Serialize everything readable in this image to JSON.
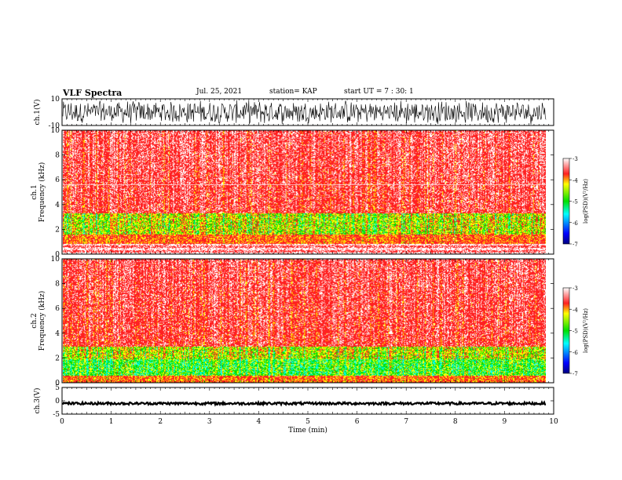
{
  "header": {
    "title": "VLF Spectra",
    "date": "Jul. 25, 2021",
    "station": "station= KAP",
    "start": "start UT = 7 : 30: 1"
  },
  "chart_data": [
    {
      "type": "line",
      "name": "ch1-waveform",
      "ylabel": "ch.1(V)",
      "ylim": [
        -10,
        10
      ],
      "yticks": [
        10,
        -10
      ],
      "xlim": [
        0,
        10
      ],
      "data_span_min": [
        0,
        9.85
      ],
      "description": "dense noisy waveform filling most of the -10..10 V range"
    },
    {
      "type": "heatmap",
      "name": "ch1-spectrogram",
      "ylabel": "ch.1 Frequency (kHz)",
      "ylim": [
        0,
        10
      ],
      "yticks": [
        0,
        2,
        4,
        6,
        8,
        10
      ],
      "xlim": [
        0,
        10
      ],
      "colorbar": {
        "label": "log(PSD)(V²/Hz)",
        "range": [
          -7,
          -3
        ],
        "ticks": [
          -3,
          -4,
          -5,
          -6,
          -7
        ]
      },
      "bands": [
        {
          "f": [
            0,
            0.8
          ],
          "level": "red-white striped"
        },
        {
          "f": [
            0.8,
            1.5
          ],
          "level": "red"
        },
        {
          "f": [
            1.5,
            3.2
          ],
          "level": "yellow-green"
        },
        {
          "f": [
            3.2,
            10
          ],
          "level": "red/white"
        }
      ]
    },
    {
      "type": "heatmap",
      "name": "ch2-spectrogram",
      "ylabel": "ch.2 Frequency (kHz)",
      "ylim": [
        0,
        10
      ],
      "yticks": [
        0,
        2,
        4,
        6,
        8,
        10
      ],
      "xlim": [
        0,
        10
      ],
      "colorbar": {
        "label": "log(PSD)(V²/Hz)",
        "range": [
          -7,
          -3
        ],
        "ticks": [
          -3,
          -4,
          -5,
          -6,
          -7
        ]
      },
      "bands": [
        {
          "f": [
            0,
            0.6
          ],
          "level": "red-yellow"
        },
        {
          "f": [
            0.6,
            1.8
          ],
          "level": "green"
        },
        {
          "f": [
            1.8,
            2.8
          ],
          "level": "yellow-green"
        },
        {
          "f": [
            2.8,
            10
          ],
          "level": "red/white"
        }
      ]
    },
    {
      "type": "line",
      "name": "ch3-waveform",
      "ylabel": "ch.3(V)",
      "ylim": [
        -5,
        5
      ],
      "yticks": [
        5,
        0,
        -5
      ],
      "xlim": [
        0,
        10
      ],
      "xlabel": "Time (min)",
      "xticks": [
        0,
        1,
        2,
        3,
        4,
        5,
        6,
        7,
        8,
        9,
        10
      ],
      "description": "flat signal near -1 V with small amplitude"
    }
  ],
  "colors": {
    "white": "#ffffff",
    "red": "#ff2020",
    "yellow": "#ffff00",
    "green": "#00e000",
    "cyan": "#00ffff",
    "blue": "#0000ff",
    "navy": "#000080"
  }
}
